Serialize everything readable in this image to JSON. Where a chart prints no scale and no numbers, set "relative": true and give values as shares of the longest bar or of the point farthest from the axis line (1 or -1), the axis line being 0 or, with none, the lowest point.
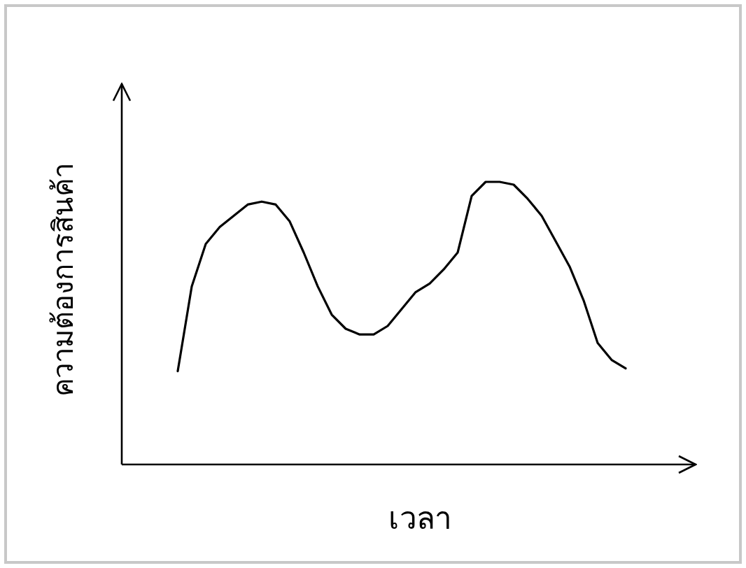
{
  "chart_data": {
    "type": "line",
    "xlabel": "เวลา",
    "ylabel": "ความต้องการสินค้า",
    "relative": true,
    "color": "#000000",
    "categories": [
      null,
      null,
      null,
      null,
      null,
      null,
      null,
      null,
      null,
      null,
      null,
      null,
      null,
      null,
      null,
      null,
      null,
      null,
      null,
      null,
      null,
      null,
      null,
      null,
      null,
      null,
      null,
      null,
      null,
      null,
      null,
      null,
      null
    ],
    "values": [
      0.33,
      0.63,
      0.78,
      0.84,
      0.88,
      0.92,
      0.93,
      0.92,
      0.86,
      0.75,
      0.63,
      0.53,
      0.48,
      0.46,
      0.46,
      0.49,
      0.55,
      0.61,
      0.64,
      0.69,
      0.75,
      0.95,
      1.0,
      1.0,
      0.99,
      0.94,
      0.88,
      0.79,
      0.7,
      0.58,
      0.43,
      0.37,
      0.34
    ]
  }
}
